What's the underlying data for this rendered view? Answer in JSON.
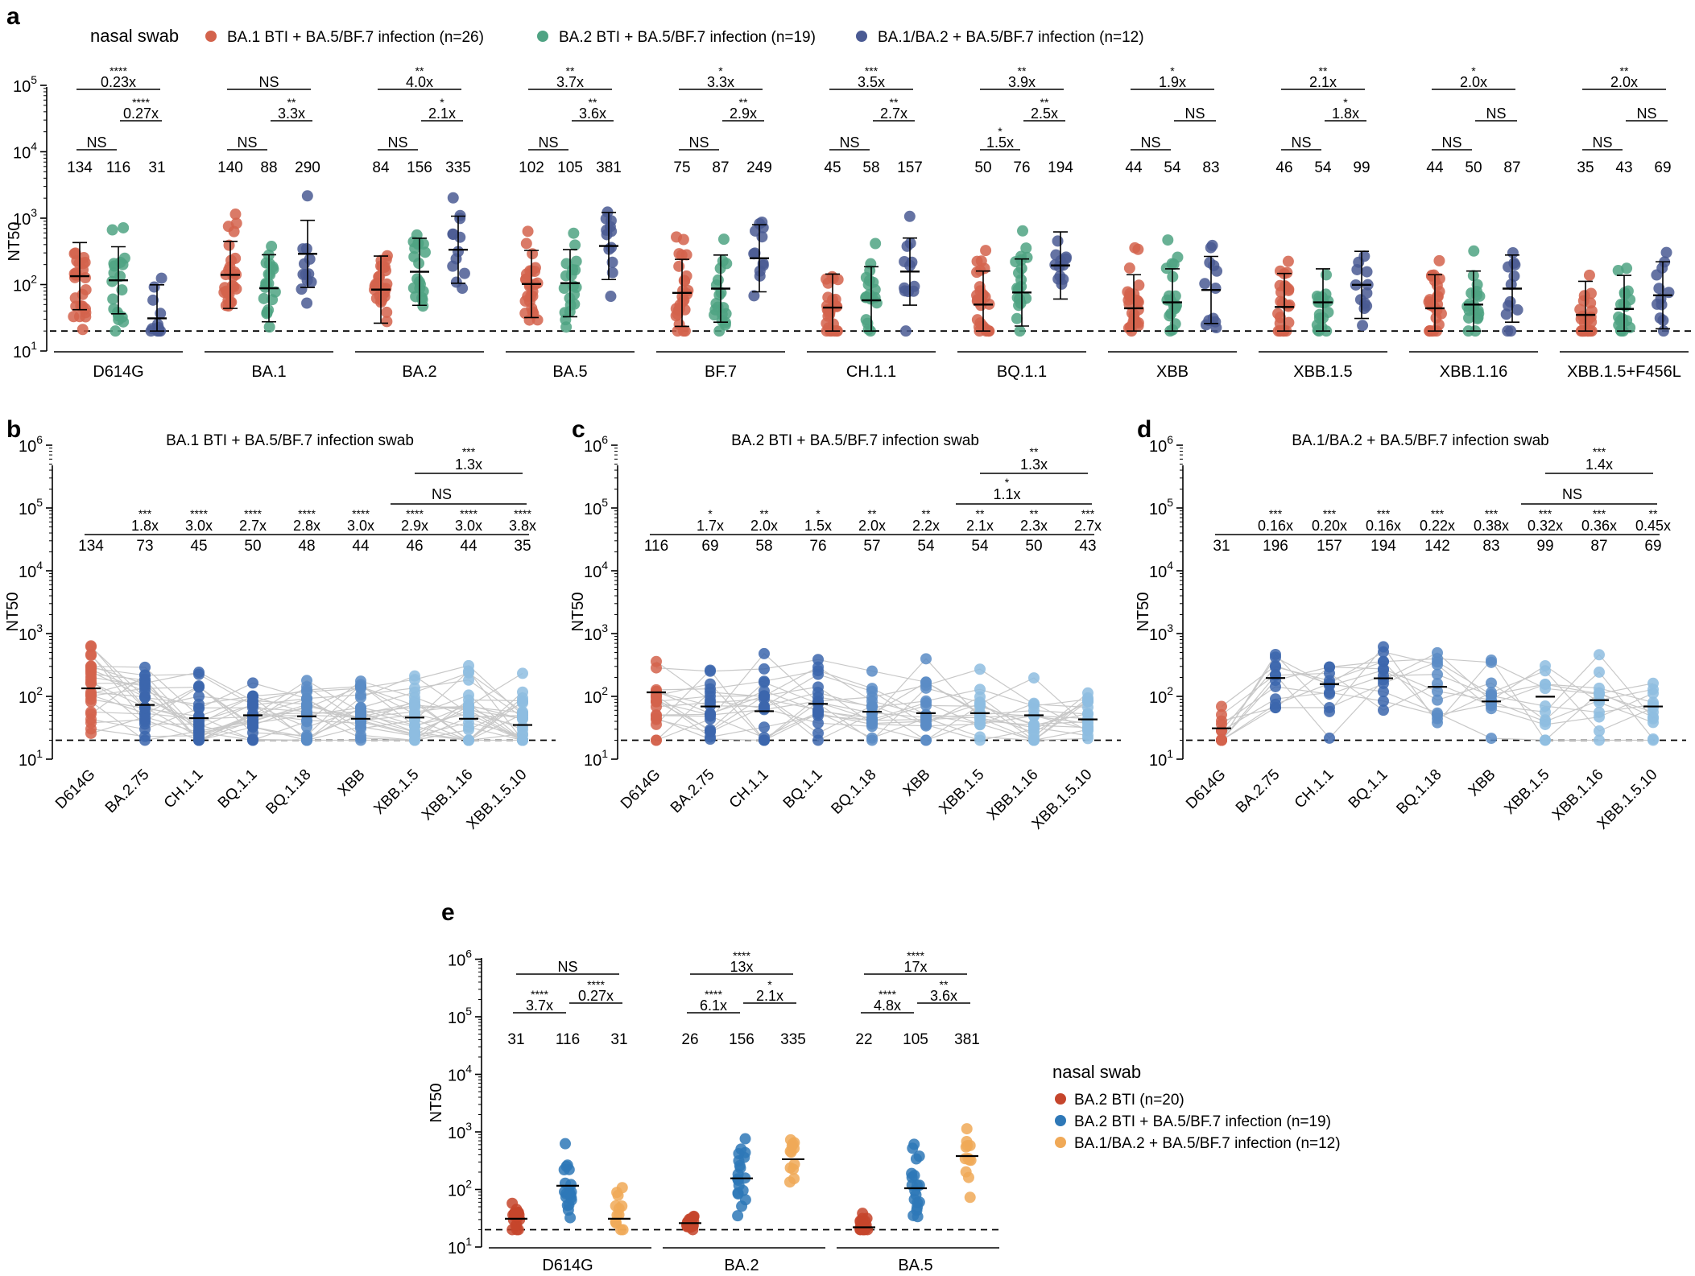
{
  "colors": {
    "red": "#d3634c",
    "green": "#4fa383",
    "navy": "#4a5a93",
    "blue_dark": "#3c66ad",
    "blue_mid": "#5b8cc6",
    "blue_light": "#8ebde0",
    "e_red": "#c5452c",
    "e_blue": "#2e78b7",
    "e_orange": "#f0a957"
  },
  "chart_data": [
    {
      "panel": "a",
      "type": "scatter",
      "ylabel": "NT50",
      "ylim": [
        10,
        100000
      ],
      "yscale": "log",
      "threshold": 20,
      "legend_title": "nasal swab",
      "legend": [
        "BA.1 BTI + BA.5/BF.7 infection (n=26)",
        "BA.2 BTI + BA.5/BF.7 infection (n=19)",
        "BA.1/BA.2 + BA.5/BF.7 infection (n=12)"
      ],
      "groups": [
        {
          "name": "D614G",
          "gmt": [
            "134",
            "116",
            "31"
          ],
          "medians": [
            134,
            116,
            31
          ],
          "sig": [
            {
              "p": "****",
              "v": "0.23x"
            },
            {
              "p": "****",
              "v": "0.27x"
            },
            {
              "p": "",
              "v": "NS"
            }
          ]
        },
        {
          "name": "BA.1",
          "gmt": [
            "140",
            "88",
            "290"
          ],
          "medians": [
            140,
            88,
            290
          ],
          "sig": [
            {
              "p": "",
              "v": "NS"
            },
            {
              "p": "**",
              "v": "3.3x"
            },
            {
              "p": "",
              "v": "NS"
            }
          ]
        },
        {
          "name": "BA.2",
          "gmt": [
            "84",
            "156",
            "335"
          ],
          "medians": [
            84,
            156,
            335
          ],
          "sig": [
            {
              "p": "**",
              "v": "4.0x"
            },
            {
              "p": "*",
              "v": "2.1x"
            },
            {
              "p": "",
              "v": "NS"
            }
          ]
        },
        {
          "name": "BA.5",
          "gmt": [
            "102",
            "105",
            "381"
          ],
          "medians": [
            102,
            105,
            381
          ],
          "sig": [
            {
              "p": "**",
              "v": "3.7x"
            },
            {
              "p": "**",
              "v": "3.6x"
            },
            {
              "p": "",
              "v": "NS"
            }
          ]
        },
        {
          "name": "BF.7",
          "gmt": [
            "75",
            "87",
            "249"
          ],
          "medians": [
            75,
            87,
            249
          ],
          "sig": [
            {
              "p": "*",
              "v": "3.3x"
            },
            {
              "p": "**",
              "v": "2.9x"
            },
            {
              "p": "",
              "v": "NS"
            }
          ]
        },
        {
          "name": "CH.1.1",
          "gmt": [
            "45",
            "58",
            "157"
          ],
          "medians": [
            45,
            58,
            157
          ],
          "sig": [
            {
              "p": "***",
              "v": "3.5x"
            },
            {
              "p": "**",
              "v": "2.7x"
            },
            {
              "p": "",
              "v": "NS"
            }
          ]
        },
        {
          "name": "BQ.1.1",
          "gmt": [
            "50",
            "76",
            "194"
          ],
          "medians": [
            50,
            76,
            194
          ],
          "sig": [
            {
              "p": "**",
              "v": "3.9x"
            },
            {
              "p": "**",
              "v": "2.5x"
            },
            {
              "p": "*",
              "v": "1.5x"
            }
          ]
        },
        {
          "name": "XBB",
          "gmt": [
            "44",
            "54",
            "83"
          ],
          "medians": [
            44,
            54,
            83
          ],
          "sig": [
            {
              "p": "*",
              "v": "1.9x"
            },
            {
              "p": "",
              "v": "NS"
            },
            {
              "p": "",
              "v": "NS"
            }
          ]
        },
        {
          "name": "XBB.1.5",
          "gmt": [
            "46",
            "54",
            "99"
          ],
          "medians": [
            46,
            54,
            99
          ],
          "sig": [
            {
              "p": "**",
              "v": "2.1x"
            },
            {
              "p": "*",
              "v": "1.8x"
            },
            {
              "p": "",
              "v": "NS"
            }
          ]
        },
        {
          "name": "XBB.1.16",
          "gmt": [
            "44",
            "50",
            "87"
          ],
          "medians": [
            44,
            50,
            87
          ],
          "sig": [
            {
              "p": "*",
              "v": "2.0x"
            },
            {
              "p": "",
              "v": "NS"
            },
            {
              "p": "",
              "v": "NS"
            }
          ]
        },
        {
          "name": "XBB.1.5+F456L",
          "gmt": [
            "35",
            "43",
            "69"
          ],
          "medians": [
            35,
            43,
            69
          ],
          "sig": [
            {
              "p": "**",
              "v": "2.0x"
            },
            {
              "p": "",
              "v": "NS"
            },
            {
              "p": "",
              "v": "NS"
            }
          ]
        }
      ]
    },
    {
      "panel": "b",
      "type": "scatter",
      "title": "BA.1 BTI + BA.5/BF.7 infection swab",
      "ylabel": "NT50",
      "ylim": [
        10,
        1000000
      ],
      "yscale": "log",
      "threshold": 20,
      "categories": [
        "D614G",
        "BA.2.75",
        "CH.1.1",
        "BQ.1.1",
        "BQ.1.18",
        "XBB",
        "XBB.1.5",
        "XBB.1.16",
        "XBB.1.5.10"
      ],
      "gmt": [
        "134",
        "73",
        "45",
        "50",
        "48",
        "44",
        "46",
        "44",
        "35"
      ],
      "medians": [
        134,
        73,
        45,
        50,
        48,
        44,
        46,
        44,
        35
      ],
      "sig": [
        {
          "p": "",
          "v": ""
        },
        {
          "p": "***",
          "v": "1.8x"
        },
        {
          "p": "****",
          "v": "3.0x"
        },
        {
          "p": "****",
          "v": "2.7x"
        },
        {
          "p": "****",
          "v": "2.8x"
        },
        {
          "p": "****",
          "v": "3.0x"
        },
        {
          "p": "****",
          "v": "2.9x"
        },
        {
          "p": "****",
          "v": "3.0x"
        },
        {
          "p": "****",
          "v": "3.8x"
        }
      ],
      "extra_top": {
        "p": "***",
        "v": "1.3x"
      },
      "extra_mid": {
        "p": "",
        "v": "NS"
      }
    },
    {
      "panel": "c",
      "type": "scatter",
      "title": "BA.2 BTI + BA.5/BF.7 infection swab",
      "ylabel": "NT50",
      "ylim": [
        10,
        1000000
      ],
      "yscale": "log",
      "threshold": 20,
      "categories": [
        "D614G",
        "BA.2.75",
        "CH.1.1",
        "BQ.1.1",
        "BQ.1.18",
        "XBB",
        "XBB.1.5",
        "XBB.1.16",
        "XBB.1.5.10"
      ],
      "gmt": [
        "116",
        "69",
        "58",
        "76",
        "57",
        "54",
        "54",
        "50",
        "43"
      ],
      "medians": [
        116,
        69,
        58,
        76,
        57,
        54,
        54,
        50,
        43
      ],
      "sig": [
        {
          "p": "",
          "v": ""
        },
        {
          "p": "*",
          "v": "1.7x"
        },
        {
          "p": "**",
          "v": "2.0x"
        },
        {
          "p": "*",
          "v": "1.5x"
        },
        {
          "p": "**",
          "v": "2.0x"
        },
        {
          "p": "**",
          "v": "2.2x"
        },
        {
          "p": "**",
          "v": "2.1x"
        },
        {
          "p": "**",
          "v": "2.3x"
        },
        {
          "p": "***",
          "v": "2.7x"
        }
      ],
      "extra_top": {
        "p": "**",
        "v": "1.3x"
      },
      "extra_mid": {
        "p": "*",
        "v": "1.1x"
      }
    },
    {
      "panel": "d",
      "type": "scatter",
      "title": "BA.1/BA.2 + BA.5/BF.7 infection swab",
      "ylabel": "NT50",
      "ylim": [
        10,
        1000000
      ],
      "yscale": "log",
      "threshold": 20,
      "categories": [
        "D614G",
        "BA.2.75",
        "CH.1.1",
        "BQ.1.1",
        "BQ.1.18",
        "XBB",
        "XBB.1.5",
        "XBB.1.16",
        "XBB.1.5.10"
      ],
      "gmt": [
        "31",
        "196",
        "157",
        "194",
        "142",
        "83",
        "99",
        "87",
        "69"
      ],
      "medians": [
        31,
        196,
        157,
        194,
        142,
        83,
        99,
        87,
        69
      ],
      "sig": [
        {
          "p": "",
          "v": ""
        },
        {
          "p": "***",
          "v": "0.16x"
        },
        {
          "p": "***",
          "v": "0.20x"
        },
        {
          "p": "***",
          "v": "0.16x"
        },
        {
          "p": "***",
          "v": "0.22x"
        },
        {
          "p": "***",
          "v": "0.38x"
        },
        {
          "p": "***",
          "v": "0.32x"
        },
        {
          "p": "***",
          "v": "0.36x"
        },
        {
          "p": "**",
          "v": "0.45x"
        }
      ],
      "extra_top": {
        "p": "***",
        "v": "1.4x"
      },
      "extra_mid": {
        "p": "",
        "v": "NS"
      }
    },
    {
      "panel": "e",
      "type": "scatter",
      "ylabel": "NT50",
      "ylim": [
        10,
        1000000
      ],
      "yscale": "log",
      "threshold": 20,
      "legend_title": "nasal swab",
      "legend": [
        "BA.2 BTI (n=20)",
        "BA.2 BTI + BA.5/BF.7 infection (n=19)",
        "BA.1/BA.2 + BA.5/BF.7 infection (n=12)"
      ],
      "groups": [
        {
          "name": "D614G",
          "gmt": [
            "31",
            "116",
            "31"
          ],
          "medians": [
            31,
            116,
            31
          ],
          "sig": [
            {
              "p": "",
              "v": "NS"
            },
            {
              "p": "****",
              "v": "3.7x"
            },
            {
              "p": "****",
              "v": "0.27x"
            }
          ]
        },
        {
          "name": "BA.2",
          "gmt": [
            "26",
            "156",
            "335"
          ],
          "medians": [
            26,
            156,
            335
          ],
          "sig": [
            {
              "p": "****",
              "v": "13x"
            },
            {
              "p": "****",
              "v": "6.1x"
            },
            {
              "p": "*",
              "v": "2.1x"
            }
          ]
        },
        {
          "name": "BA.5",
          "gmt": [
            "22",
            "105",
            "381"
          ],
          "medians": [
            22,
            105,
            381
          ],
          "sig": [
            {
              "p": "****",
              "v": "17x"
            },
            {
              "p": "****",
              "v": "4.8x"
            },
            {
              "p": "**",
              "v": "3.6x"
            }
          ]
        }
      ]
    }
  ]
}
